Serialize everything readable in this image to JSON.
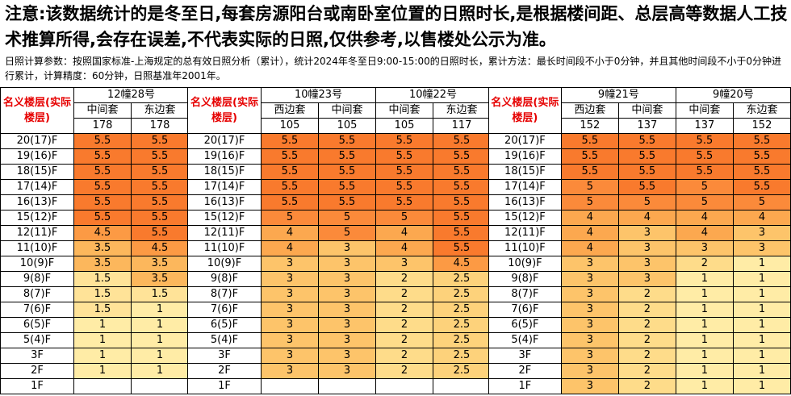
{
  "notice": "注意:该数据统计的是冬至日,每套房源阳台或南卧室位置的日照时长,是根据楼间距、总层高等数据人工技术推算所得,会存在误差,不代表实际的日照,仅供参考,以售楼处公示为准。",
  "params": "日照计算参数：按照国家标准-上海规定的总有效日照分析（累计），统计2024年冬至日9:00-15:00的日照时长，累计方法：最长时间段不小于0分钟，并且其他时间段不小于0分钟进行累计，计算精度：60分钟，日照基准年2001年。",
  "floor_header": "名义楼层(实际楼层)",
  "floors": [
    "20(17)F",
    "19(16)F",
    "18(15)F",
    "17(14)F",
    "16(13)F",
    "15(12)F",
    "12(11)F",
    "11(10)F",
    "10(9)F",
    "9(8)F",
    "8(7)F",
    "7(6)F",
    "6(5)F",
    "5(4)F",
    "3F",
    "2F",
    "1F"
  ],
  "blocks": [
    {
      "building": "12幢28号",
      "units": [
        {
          "name": "中间套",
          "area": "178",
          "values": [
            "5.5",
            "5.5",
            "5.5",
            "5.5",
            "5.5",
            "5.5",
            "4.5",
            "3.5",
            "3.5",
            "1.5",
            "1.5",
            "1.5",
            "1",
            "1",
            "1",
            "1",
            ""
          ]
        },
        {
          "name": "东边套",
          "area": "178",
          "values": [
            "5.5",
            "5.5",
            "5.5",
            "5.5",
            "5.5",
            "5.5",
            "5.5",
            "4.5",
            "3.5",
            "3.5",
            "1.5",
            "1",
            "1",
            "1",
            "1",
            "1",
            ""
          ]
        }
      ]
    },
    {
      "building": "10幢23号",
      "units": [
        {
          "name": "西边套",
          "area": "105",
          "values": [
            "5.5",
            "5.5",
            "5.5",
            "5.5",
            "5.5",
            "5",
            "4",
            "4",
            "3",
            "3",
            "3",
            "3",
            "3",
            "3",
            "3",
            "3",
            ""
          ]
        },
        {
          "name": "中间套",
          "area": "105",
          "values": [
            "5.5",
            "5.5",
            "5.5",
            "5.5",
            "5.5",
            "5",
            "5",
            "3",
            "3",
            "3",
            "3",
            "3",
            "3",
            "3",
            "3",
            "3",
            ""
          ]
        }
      ]
    },
    {
      "building": "10幢22号",
      "units": [
        {
          "name": "中间套",
          "area": "105",
          "values": [
            "5.5",
            "5.5",
            "5.5",
            "5.5",
            "5.5",
            "5",
            "4",
            "4",
            "3",
            "2",
            "2",
            "2",
            "2",
            "2",
            "2",
            "2",
            ""
          ]
        },
        {
          "name": "东边套",
          "area": "117",
          "values": [
            "5.5",
            "5.5",
            "5.5",
            "5.5",
            "5.5",
            "5.5",
            "5.5",
            "5.5",
            "4.5",
            "2.5",
            "2.5",
            "2.5",
            "2.5",
            "2.5",
            "2.5",
            "2.5",
            ""
          ]
        }
      ]
    },
    {
      "building": "9幢21号",
      "units": [
        {
          "name": "西边套",
          "area": "152",
          "values": [
            "5.5",
            "5.5",
            "5.5",
            "5",
            "5",
            "4",
            "4",
            "4",
            "3",
            "3",
            "3",
            "3",
            "3",
            "3",
            "3",
            "3",
            "3"
          ]
        },
        {
          "name": "中间套",
          "area": "137",
          "values": [
            "5.5",
            "5.5",
            "5.5",
            "5.5",
            "5",
            "4",
            "3",
            "3",
            "3",
            "3",
            "2",
            "2",
            "2",
            "2",
            "2",
            "2",
            "2"
          ]
        }
      ]
    },
    {
      "building": "9幢20号",
      "units": [
        {
          "name": "中间套",
          "area": "137",
          "values": [
            "5.5",
            "5.5",
            "5.5",
            "5",
            "5",
            "4",
            "4",
            "3",
            "2",
            "1",
            "1",
            "1",
            "1",
            "1",
            "1",
            "1",
            "1"
          ]
        },
        {
          "name": "东边套",
          "area": "152",
          "values": [
            "5.5",
            "5.5",
            "5.5",
            "5.5",
            "5",
            "4",
            "3",
            "3",
            "1",
            "1",
            "1",
            "1",
            "1",
            "1",
            "1",
            "1",
            "1"
          ]
        }
      ]
    }
  ]
}
